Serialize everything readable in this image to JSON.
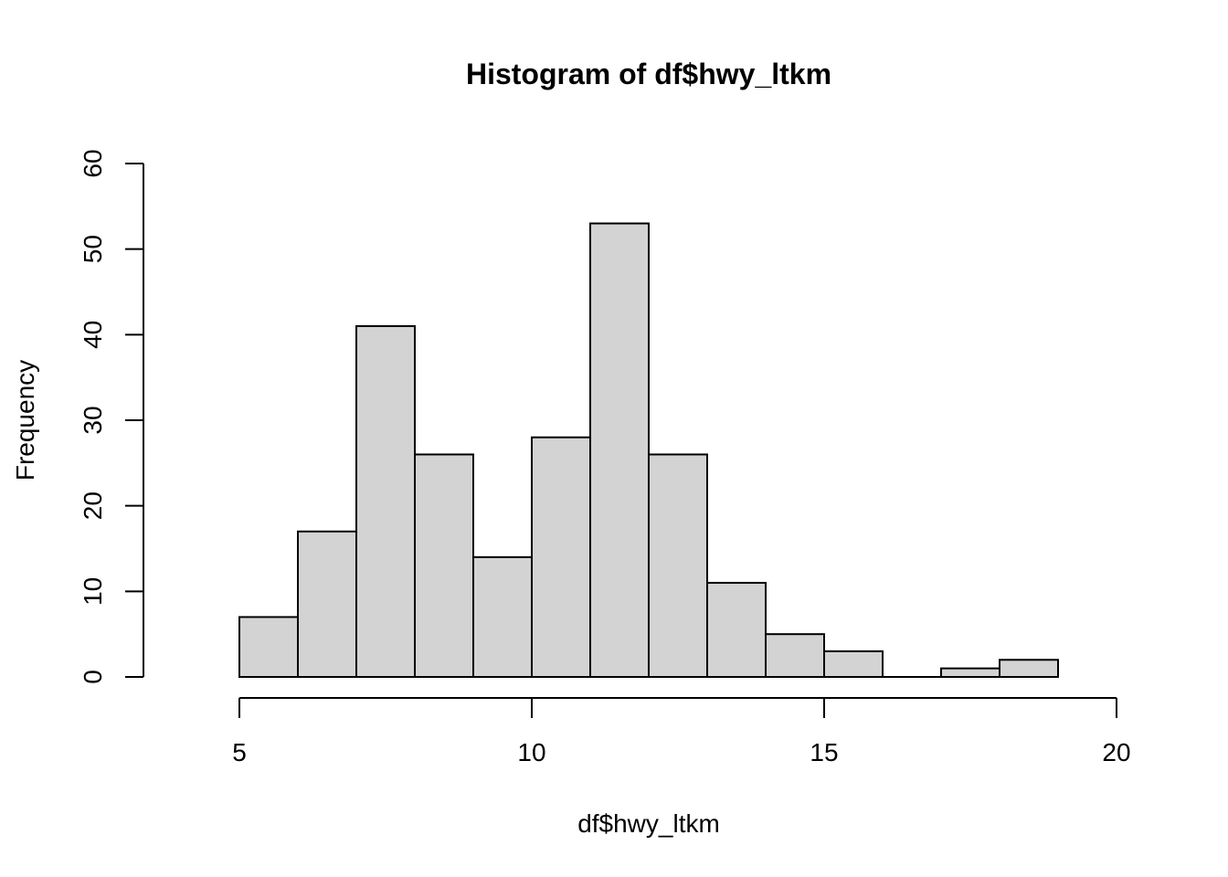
{
  "chart_data": {
    "type": "bar",
    "subtype": "histogram",
    "title": "Histogram of df$hwy_ltkm",
    "xlabel": "df$hwy_ltkm",
    "ylabel": "Frequency",
    "xlim": [
      5,
      20
    ],
    "ylim": [
      0,
      60
    ],
    "x_ticks": [
      5,
      10,
      15,
      20
    ],
    "y_ticks": [
      0,
      10,
      20,
      30,
      40,
      50,
      60
    ],
    "bin_edges": [
      5,
      6,
      7,
      8,
      9,
      10,
      11,
      12,
      13,
      14,
      15,
      16,
      17,
      18,
      19
    ],
    "values": [
      7,
      17,
      41,
      26,
      14,
      28,
      53,
      26,
      11,
      5,
      3,
      0,
      1,
      2
    ],
    "bar_color": "#d3d3d3",
    "grid": false
  }
}
